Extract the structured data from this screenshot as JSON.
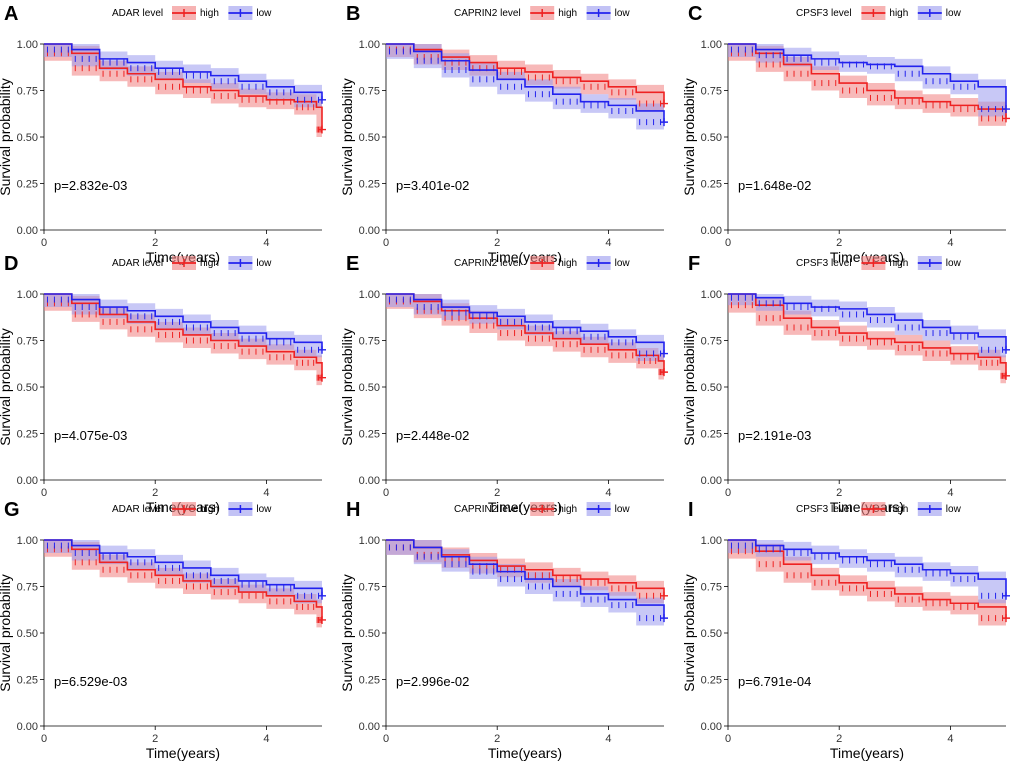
{
  "figure": {
    "background": "#ffffff",
    "colors": {
      "high": "#ee2222",
      "low": "#2222ee",
      "high_band": "#f08080",
      "low_band": "#9a9aee"
    },
    "xlabel": "Time(years)",
    "ylabel": "Survival probability",
    "x_ticks": [
      "0",
      "2",
      "4"
    ],
    "y_ticks": [
      "1.00",
      "0.75",
      "0.50",
      "0.25",
      "0.00"
    ],
    "legend_high": "high",
    "legend_low": "low"
  },
  "chart_data": [
    {
      "type": "line",
      "panel": "A",
      "gene": "ADAR",
      "legend_title": "ADAR level",
      "pvalue_text": "p=2.832e-03",
      "xlim": [
        0,
        5
      ],
      "ylim": [
        0,
        1
      ],
      "series": [
        {
          "name": "high",
          "x": [
            0,
            0.5,
            1,
            1.5,
            2,
            2.5,
            3,
            3.5,
            4,
            4.5,
            4.9,
            5.0
          ],
          "y": [
            1.0,
            0.95,
            0.87,
            0.84,
            0.81,
            0.77,
            0.75,
            0.72,
            0.7,
            0.69,
            0.66,
            0.54
          ],
          "ci_width": 0.04
        },
        {
          "name": "low",
          "x": [
            0,
            0.5,
            1,
            1.5,
            2,
            2.5,
            3,
            3.5,
            4,
            4.5,
            5.0
          ],
          "y": [
            1.0,
            0.97,
            0.92,
            0.9,
            0.87,
            0.85,
            0.83,
            0.8,
            0.77,
            0.74,
            0.7
          ],
          "ci_width": 0.04
        }
      ]
    },
    {
      "type": "line",
      "panel": "B",
      "gene": "CAPRIN2",
      "legend_title": "CAPRIN2 level",
      "pvalue_text": "p=3.401e-02",
      "xlim": [
        0,
        5
      ],
      "ylim": [
        0,
        1
      ],
      "series": [
        {
          "name": "high",
          "x": [
            0,
            0.5,
            1,
            1.5,
            2,
            2.5,
            3,
            3.5,
            4,
            4.5,
            5.0
          ],
          "y": [
            1.0,
            0.97,
            0.93,
            0.9,
            0.87,
            0.85,
            0.82,
            0.8,
            0.77,
            0.74,
            0.68
          ],
          "ci_width": 0.04
        },
        {
          "name": "low",
          "x": [
            0,
            0.5,
            1,
            1.5,
            2,
            2.5,
            3,
            3.5,
            4,
            4.5,
            5.0
          ],
          "y": [
            1.0,
            0.96,
            0.91,
            0.86,
            0.81,
            0.77,
            0.73,
            0.69,
            0.67,
            0.64,
            0.58
          ],
          "ci_width": 0.04
        }
      ]
    },
    {
      "type": "line",
      "panel": "C",
      "gene": "CPSF3",
      "legend_title": "CPSF3 level",
      "pvalue_text": "p=1.648e-02",
      "xlim": [
        0,
        5
      ],
      "ylim": [
        0,
        1
      ],
      "series": [
        {
          "name": "high",
          "x": [
            0,
            0.5,
            1,
            1.5,
            2,
            2.5,
            3,
            3.5,
            4,
            4.5,
            5.0
          ],
          "y": [
            1.0,
            0.95,
            0.89,
            0.84,
            0.79,
            0.75,
            0.71,
            0.69,
            0.67,
            0.65,
            0.6
          ],
          "ci_width": 0.04
        },
        {
          "name": "low",
          "x": [
            0,
            0.5,
            1,
            1.5,
            2,
            2.5,
            3,
            3.5,
            4,
            4.5,
            5.0
          ],
          "y": [
            1.0,
            0.97,
            0.94,
            0.92,
            0.9,
            0.89,
            0.88,
            0.84,
            0.8,
            0.77,
            0.65
          ],
          "ci_width": 0.04
        }
      ]
    },
    {
      "type": "line",
      "panel": "D",
      "gene": "ADAR",
      "legend_title": "ADAR level",
      "pvalue_text": "p=4.075e-03",
      "xlim": [
        0,
        5
      ],
      "ylim": [
        0,
        1
      ],
      "series": [
        {
          "name": "high",
          "x": [
            0,
            0.5,
            1,
            1.5,
            2,
            2.5,
            3,
            3.5,
            4,
            4.5,
            4.9,
            5.0
          ],
          "y": [
            1.0,
            0.95,
            0.89,
            0.85,
            0.81,
            0.78,
            0.75,
            0.72,
            0.69,
            0.66,
            0.63,
            0.55
          ],
          "ci_width": 0.04
        },
        {
          "name": "low",
          "x": [
            0,
            0.5,
            1,
            1.5,
            2,
            2.5,
            3,
            3.5,
            4,
            4.5,
            5.0
          ],
          "y": [
            1.0,
            0.97,
            0.93,
            0.91,
            0.88,
            0.85,
            0.82,
            0.79,
            0.76,
            0.74,
            0.7
          ],
          "ci_width": 0.04
        }
      ]
    },
    {
      "type": "line",
      "panel": "E",
      "gene": "CAPRIN2",
      "legend_title": "CAPRIN2 level",
      "pvalue_text": "p=2.448e-02",
      "xlim": [
        0,
        5
      ],
      "ylim": [
        0,
        1
      ],
      "series": [
        {
          "name": "high",
          "x": [
            0,
            0.5,
            1,
            1.5,
            2,
            2.5,
            3,
            3.5,
            4,
            4.5,
            4.9,
            5.0
          ],
          "y": [
            1.0,
            0.96,
            0.91,
            0.87,
            0.83,
            0.79,
            0.76,
            0.73,
            0.7,
            0.67,
            0.64,
            0.58
          ],
          "ci_width": 0.04
        },
        {
          "name": "low",
          "x": [
            0,
            0.5,
            1,
            1.5,
            2,
            2.5,
            3,
            3.5,
            4,
            4.5,
            5.0
          ],
          "y": [
            1.0,
            0.97,
            0.93,
            0.9,
            0.88,
            0.85,
            0.82,
            0.8,
            0.77,
            0.74,
            0.68
          ],
          "ci_width": 0.04
        }
      ]
    },
    {
      "type": "line",
      "panel": "F",
      "gene": "CPSF3",
      "legend_title": "CPSF3 level",
      "pvalue_text": "p=2.191e-03",
      "xlim": [
        0,
        5
      ],
      "ylim": [
        0,
        1
      ],
      "series": [
        {
          "name": "high",
          "x": [
            0,
            0.5,
            1,
            1.5,
            2,
            2.5,
            3,
            3.5,
            4,
            4.5,
            4.9,
            5.0
          ],
          "y": [
            1.0,
            0.94,
            0.87,
            0.82,
            0.79,
            0.76,
            0.74,
            0.71,
            0.68,
            0.66,
            0.63,
            0.56
          ],
          "ci_width": 0.04
        },
        {
          "name": "low",
          "x": [
            0,
            0.5,
            1,
            1.5,
            2,
            2.5,
            3,
            3.5,
            4,
            4.5,
            5.0
          ],
          "y": [
            1.0,
            0.98,
            0.95,
            0.93,
            0.92,
            0.89,
            0.86,
            0.82,
            0.79,
            0.77,
            0.7
          ],
          "ci_width": 0.04
        }
      ]
    },
    {
      "type": "line",
      "panel": "G",
      "gene": "ADAR",
      "legend_title": "ADAR level",
      "pvalue_text": "p=6.529e-03",
      "xlim": [
        0,
        5
      ],
      "ylim": [
        0,
        1
      ],
      "series": [
        {
          "name": "high",
          "x": [
            0,
            0.5,
            1,
            1.5,
            2,
            2.5,
            3,
            3.5,
            4,
            4.5,
            4.9,
            5.0
          ],
          "y": [
            1.0,
            0.95,
            0.88,
            0.84,
            0.81,
            0.78,
            0.75,
            0.72,
            0.7,
            0.67,
            0.64,
            0.57
          ],
          "ci_width": 0.04
        },
        {
          "name": "low",
          "x": [
            0,
            0.5,
            1,
            1.5,
            2,
            2.5,
            3,
            3.5,
            4,
            4.5,
            5.0
          ],
          "y": [
            1.0,
            0.97,
            0.93,
            0.91,
            0.88,
            0.85,
            0.81,
            0.78,
            0.76,
            0.74,
            0.7
          ],
          "ci_width": 0.04
        }
      ]
    },
    {
      "type": "line",
      "panel": "H",
      "gene": "CAPRIN2",
      "legend_title": "CAPRIN2 level",
      "pvalue_text": "p=2.996e-02",
      "xlim": [
        0,
        5
      ],
      "ylim": [
        0,
        1
      ],
      "series": [
        {
          "name": "high",
          "x": [
            0,
            0.5,
            1,
            1.5,
            2,
            2.5,
            3,
            3.5,
            4,
            4.5,
            5.0
          ],
          "y": [
            1.0,
            0.96,
            0.92,
            0.89,
            0.86,
            0.84,
            0.81,
            0.79,
            0.77,
            0.74,
            0.7
          ],
          "ci_width": 0.04
        },
        {
          "name": "low",
          "x": [
            0,
            0.5,
            1,
            1.5,
            2,
            2.5,
            3,
            3.5,
            4,
            4.5,
            5.0
          ],
          "y": [
            1.0,
            0.96,
            0.91,
            0.87,
            0.83,
            0.79,
            0.75,
            0.71,
            0.68,
            0.65,
            0.58
          ],
          "ci_width": 0.04
        }
      ]
    },
    {
      "type": "line",
      "panel": "I",
      "gene": "CPSF3",
      "legend_title": "CPSF3 level",
      "pvalue_text": "p=6.791e-04",
      "xlim": [
        0,
        5
      ],
      "ylim": [
        0,
        1
      ],
      "series": [
        {
          "name": "high",
          "x": [
            0,
            0.5,
            1,
            1.5,
            2,
            2.5,
            3,
            3.5,
            4,
            4.5,
            5.0
          ],
          "y": [
            1.0,
            0.94,
            0.87,
            0.81,
            0.77,
            0.74,
            0.71,
            0.68,
            0.66,
            0.64,
            0.58
          ],
          "ci_width": 0.04
        },
        {
          "name": "low",
          "x": [
            0,
            0.5,
            1,
            1.5,
            2,
            2.5,
            3,
            3.5,
            4,
            4.5,
            5.0
          ],
          "y": [
            1.0,
            0.97,
            0.95,
            0.93,
            0.91,
            0.89,
            0.87,
            0.84,
            0.82,
            0.79,
            0.7
          ],
          "ci_width": 0.04
        }
      ]
    }
  ]
}
